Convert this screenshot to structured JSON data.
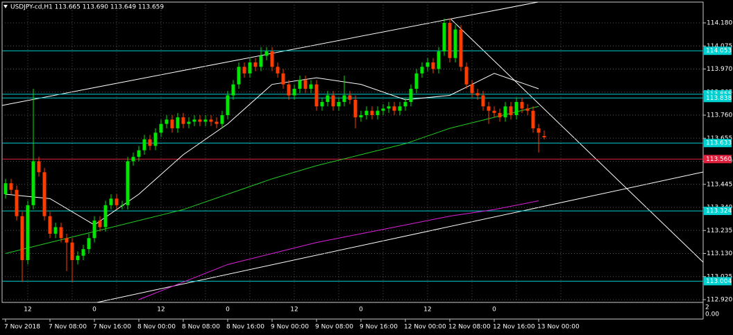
{
  "chart_data": {
    "type": "candlestick",
    "title": "USDJPY-cd,H1  113.665 113.690 113.649 113.659",
    "categories": [
      "7 Nov 2018",
      null,
      null,
      null,
      null,
      null,
      null,
      null,
      "7 Nov 08:00",
      null,
      null,
      null,
      null,
      null,
      null,
      null,
      "7 Nov 16:00",
      null,
      null,
      null,
      null,
      null,
      null,
      null,
      "8 Nov 00:00",
      null,
      null,
      null,
      null,
      null,
      null,
      null,
      "8 Nov 08:00",
      null,
      null,
      null,
      null,
      null,
      null,
      null,
      "8 Nov 16:00",
      null,
      null,
      null,
      null,
      null,
      null,
      null,
      "9 Nov 00:00",
      null,
      null,
      null,
      null,
      null,
      null,
      null,
      "9 Nov 08:00",
      null,
      null,
      null,
      null,
      null,
      null,
      null,
      "9 Nov 16:00",
      null,
      null,
      null,
      null,
      null,
      null,
      null,
      "12 Nov 00:00",
      null,
      null,
      null,
      null,
      null,
      null,
      null,
      "12 Nov 08:00",
      null,
      null,
      null,
      null,
      null,
      null,
      null,
      "12 Nov 16:00",
      null,
      null,
      null,
      null,
      null,
      null,
      null,
      "13 Nov 00:00",
      null
    ],
    "open": [
      113.4,
      113.45,
      113.42,
      113.3,
      113.1,
      113.35,
      113.55,
      113.5,
      113.3,
      113.22,
      113.25,
      113.2,
      113.18,
      113.1,
      113.12,
      113.15,
      113.2,
      113.28,
      113.25,
      113.35,
      113.38,
      113.35,
      113.35,
      113.55,
      113.57,
      113.6,
      113.65,
      113.62,
      113.68,
      113.72,
      113.74,
      113.7,
      113.75,
      113.72,
      113.73,
      113.74,
      113.73,
      113.74,
      113.73,
      113.72,
      113.76,
      113.85,
      113.9,
      113.98,
      113.95,
      114.0,
      113.98,
      114.03,
      114.05,
      113.98,
      113.95,
      113.9,
      113.85,
      113.88,
      113.92,
      113.88,
      113.9,
      113.8,
      113.82,
      113.85,
      113.8,
      113.82,
      113.85,
      113.83,
      113.75,
      113.76,
      113.78,
      113.76,
      113.78,
      113.79,
      113.8,
      113.78,
      113.8,
      113.82,
      113.88,
      113.95,
      113.98,
      114.0,
      113.97,
      114.05,
      114.18,
      114.02,
      114.15,
      113.98,
      113.9,
      113.86,
      113.85,
      113.8,
      113.78,
      113.77,
      113.75,
      113.8,
      113.76,
      113.82,
      113.79,
      113.78,
      113.7,
      113.665
    ],
    "high": [
      113.47,
      113.47,
      113.44,
      113.32,
      113.37,
      113.88,
      113.57,
      113.52,
      113.32,
      113.27,
      113.27,
      113.22,
      113.2,
      113.14,
      113.17,
      113.22,
      113.3,
      113.3,
      113.37,
      113.4,
      113.4,
      113.37,
      113.57,
      113.59,
      113.62,
      113.67,
      113.67,
      113.7,
      113.74,
      113.76,
      113.76,
      113.77,
      113.77,
      113.75,
      113.76,
      113.76,
      113.76,
      113.76,
      113.75,
      113.78,
      113.87,
      113.92,
      114.0,
      114.0,
      114.02,
      114.02,
      114.07,
      114.07,
      114.07,
      114.0,
      113.97,
      113.92,
      113.9,
      113.94,
      113.94,
      113.92,
      113.92,
      113.84,
      113.87,
      113.87,
      113.84,
      113.94,
      113.87,
      113.85,
      113.78,
      113.8,
      113.8,
      113.8,
      113.81,
      113.82,
      113.82,
      113.82,
      113.84,
      113.9,
      113.97,
      114.0,
      114.02,
      114.02,
      114.07,
      114.2,
      114.2,
      114.17,
      114.17,
      114.0,
      113.92,
      113.88,
      113.87,
      113.82,
      113.8,
      113.79,
      113.82,
      113.82,
      113.84,
      113.84,
      113.81,
      113.8,
      113.72,
      113.69
    ],
    "low": [
      113.38,
      113.4,
      113.28,
      113.0,
      113.08,
      113.33,
      113.48,
      113.28,
      113.2,
      113.2,
      113.18,
      113.05,
      113.0,
      113.08,
      113.1,
      113.13,
      113.18,
      113.23,
      113.23,
      113.33,
      113.33,
      113.33,
      113.33,
      113.53,
      113.55,
      113.58,
      113.6,
      113.6,
      113.66,
      113.7,
      113.68,
      113.68,
      113.7,
      113.7,
      113.71,
      113.71,
      113.71,
      113.71,
      113.7,
      113.7,
      113.74,
      113.83,
      113.88,
      113.93,
      113.93,
      113.96,
      113.96,
      114.01,
      113.96,
      113.93,
      113.88,
      113.83,
      113.83,
      113.86,
      113.86,
      113.86,
      113.78,
      113.78,
      113.8,
      113.78,
      113.78,
      113.8,
      113.81,
      113.7,
      113.73,
      113.74,
      113.74,
      113.74,
      113.76,
      113.77,
      113.76,
      113.76,
      113.78,
      113.8,
      113.86,
      113.93,
      113.96,
      113.95,
      113.95,
      114.03,
      114.0,
      114.0,
      113.96,
      113.88,
      113.84,
      113.83,
      113.78,
      113.72,
      113.75,
      113.73,
      113.73,
      113.74,
      113.74,
      113.77,
      113.76,
      113.68,
      113.59,
      113.649
    ],
    "close": [
      113.45,
      113.42,
      113.3,
      113.1,
      113.35,
      113.55,
      113.5,
      113.3,
      113.22,
      113.25,
      113.2,
      113.18,
      113.1,
      113.12,
      113.15,
      113.2,
      113.28,
      113.25,
      113.35,
      113.38,
      113.35,
      113.35,
      113.55,
      113.57,
      113.6,
      113.65,
      113.62,
      113.68,
      113.72,
      113.74,
      113.7,
      113.75,
      113.72,
      113.73,
      113.74,
      113.73,
      113.74,
      113.73,
      113.72,
      113.76,
      113.85,
      113.9,
      113.98,
      113.95,
      114.0,
      113.98,
      114.03,
      114.05,
      113.98,
      113.95,
      113.9,
      113.85,
      113.88,
      113.92,
      113.88,
      113.9,
      113.8,
      113.82,
      113.85,
      113.8,
      113.82,
      113.85,
      113.83,
      113.75,
      113.76,
      113.78,
      113.76,
      113.78,
      113.79,
      113.8,
      113.78,
      113.8,
      113.82,
      113.88,
      113.95,
      113.98,
      114.0,
      113.97,
      114.05,
      114.18,
      114.02,
      114.15,
      113.98,
      113.9,
      113.86,
      113.85,
      113.8,
      113.78,
      113.77,
      113.75,
      113.8,
      113.76,
      113.82,
      113.79,
      113.78,
      113.7,
      113.68,
      113.659
    ],
    "up_color": "#00e600",
    "down_color": "#ff3c00",
    "indicators": [
      {
        "color": "#ffffff",
        "values": [
          113.4,
          113.38,
          113.26,
          113.4,
          113.58,
          113.72,
          113.9,
          113.93,
          113.9,
          113.83,
          113.85,
          113.95,
          113.88
        ]
      },
      {
        "color": "#22cc22",
        "values": [
          113.13,
          113.18,
          113.23,
          113.28,
          113.33,
          113.4,
          113.47,
          113.53,
          113.58,
          113.63,
          113.7,
          113.75,
          113.8
        ]
      },
      {
        "color": "#e020e0",
        "values": [
          null,
          null,
          null,
          112.92,
          113.0,
          113.08,
          113.13,
          113.18,
          113.22,
          113.26,
          113.3,
          113.33,
          113.37
        ]
      }
    ],
    "levels": [
      {
        "value": 114.053,
        "color": "#00d0d0"
      },
      {
        "value": 113.855,
        "color": "#00d0d0"
      },
      {
        "value": 113.838,
        "color": "#00d0d0"
      },
      {
        "value": 113.633,
        "color": "#00d0d0"
      },
      {
        "value": {
          "value": 113.56,
          "label": "113.560"
        },
        "color": "#e0203c"
      },
      {
        "value": 113.324,
        "color": "#00d0d0"
      },
      {
        "value": 113.004,
        "color": "#00d0d0"
      }
    ],
    "ylim": [
      112.92,
      114.18
    ],
    "yticks": [
      {
        "value": 114.18,
        "label": "114.180"
      },
      {
        "value": 114.075,
        "label": "114.075"
      },
      {
        "value": 113.97,
        "label": "113.970"
      },
      {
        "value": 113.865,
        "label": "113.865"
      },
      {
        "value": 113.76,
        "label": "113.760"
      },
      {
        "value": 113.655,
        "label": "113.655"
      },
      {
        "value": 113.55,
        "label": "113.550"
      },
      {
        "value": 113.445,
        "label": "113.445"
      },
      {
        "value": 113.34,
        "label": "113.340"
      },
      {
        "value": 113.235,
        "label": "113.235"
      },
      {
        "value": 113.13,
        "label": "113.130"
      },
      {
        "value": 113.025,
        "label": "113.025"
      },
      {
        "value": 112.92,
        "label": "112.920"
      }
    ],
    "grid": true,
    "hour_labels": [
      "12",
      "0",
      "12",
      "0",
      "12",
      "0",
      "12",
      "0"
    ],
    "subwindow_scale": [
      "2",
      "0.00"
    ]
  }
}
